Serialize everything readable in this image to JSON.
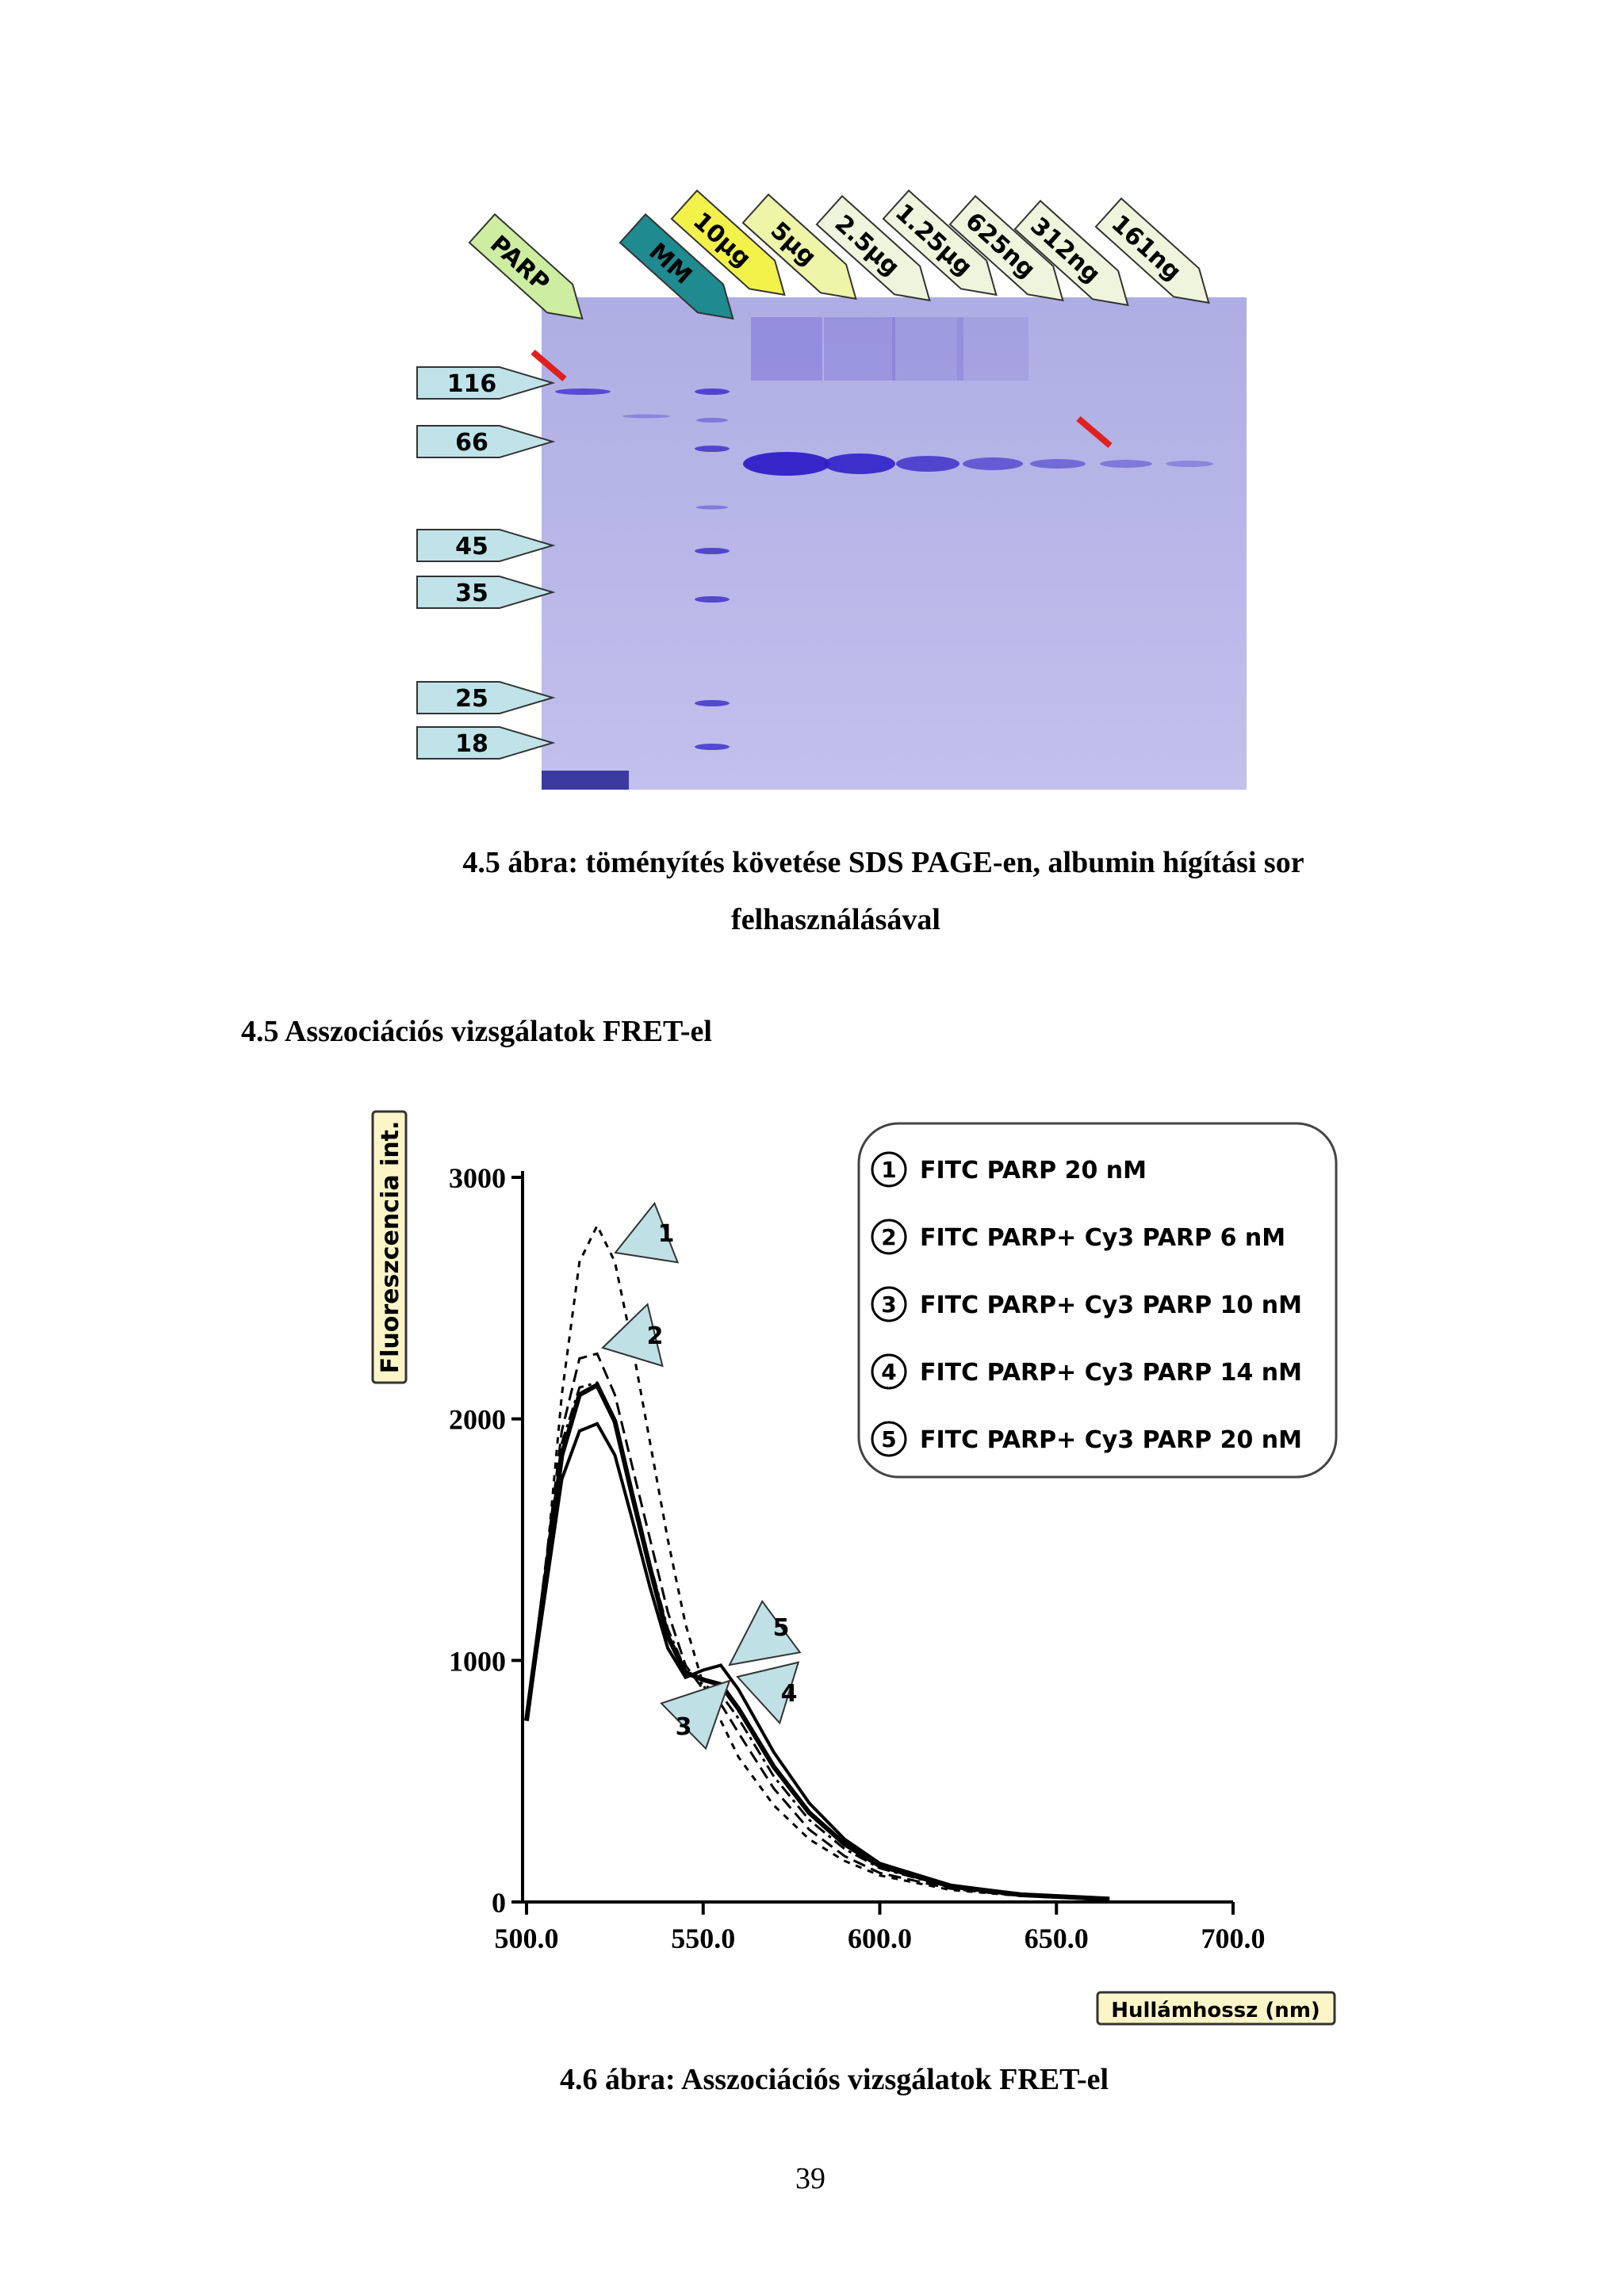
{
  "gel_figure": {
    "lanes": [
      "PARP",
      "MM",
      "10µg",
      "5µg",
      "2.5µg",
      "1.25µg",
      "625ng",
      "312ng",
      "161ng"
    ],
    "markers": [
      "116",
      "66",
      "45",
      "35",
      "25",
      "18"
    ]
  },
  "caption_1": {
    "line_1": "4.5 ábra: töményítés követése SDS PAGE-en, albumin hígítási sor",
    "line_2": "felhasználásával"
  },
  "section_heading": "4.5 Asszociációs vizsgálatok FRET-el",
  "chart_data": {
    "type": "line",
    "x_label": "Hullámhossz (nm)",
    "y_label": "Fluoreszcencia int.",
    "x": [
      500,
      505,
      510,
      515,
      520,
      525,
      530,
      535,
      540,
      545,
      550,
      555,
      560,
      570,
      580,
      590,
      600,
      620,
      640,
      665
    ],
    "series": [
      {
        "name": "FITC PARP 20 nM",
        "marker_label": "1",
        "color": "#000000",
        "values": [
          750,
          1300,
          2100,
          2650,
          2800,
          2650,
          2300,
          1900,
          1500,
          1150,
          900,
          750,
          600,
          400,
          260,
          170,
          110,
          50,
          25,
          10
        ]
      },
      {
        "name": "FITC PARP+ Cy3 PARP 6 nM",
        "marker_label": "2",
        "color": "#000000",
        "values": [
          750,
          1350,
          1950,
          2250,
          2270,
          2100,
          1800,
          1500,
          1200,
          980,
          880,
          820,
          700,
          470,
          300,
          190,
          120,
          55,
          25,
          10
        ]
      },
      {
        "name": "FITC PARP+ Cy3 PARP 10 nM",
        "marker_label": "3",
        "color": "#000000",
        "values": [
          750,
          1350,
          1900,
          2130,
          2150,
          2000,
          1700,
          1400,
          1130,
          960,
          900,
          860,
          760,
          520,
          340,
          220,
          140,
          60,
          28,
          12
        ]
      },
      {
        "name": "FITC PARP+ Cy3 PARP 14 nM",
        "marker_label": "4",
        "color": "#000000",
        "values": [
          750,
          1300,
          1850,
          2100,
          2140,
          1990,
          1680,
          1380,
          1100,
          950,
          920,
          900,
          800,
          560,
          370,
          240,
          150,
          65,
          30,
          12
        ]
      },
      {
        "name": "FITC PARP+ Cy3 PARP 20 nM",
        "marker_label": "5",
        "color": "#000000",
        "values": [
          750,
          1250,
          1750,
          1950,
          1980,
          1850,
          1580,
          1300,
          1050,
          930,
          960,
          980,
          880,
          620,
          410,
          260,
          160,
          70,
          32,
          12
        ]
      }
    ],
    "xlim": [
      500,
      700
    ],
    "xticks": [
      {
        "value": 500,
        "label": "500.0"
      },
      {
        "value": 550,
        "label": "550.0"
      },
      {
        "value": 600,
        "label": "600.0"
      },
      {
        "value": 650,
        "label": "650.0"
      },
      {
        "value": 700,
        "label": "700.0"
      }
    ],
    "ylim": [
      0,
      3000
    ],
    "yticks": [
      0,
      1000,
      2000,
      3000
    ]
  },
  "caption_2": "4.6 ábra: Asszociációs vizsgálatok FRET-el",
  "page_number": "39"
}
